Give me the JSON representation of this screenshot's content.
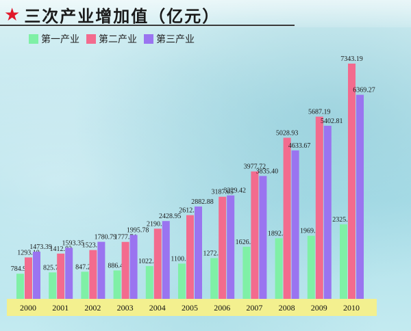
{
  "title": "三次产业增加值（亿元）",
  "colors": {
    "primary": "#7ff0a6",
    "secondary": "#f36b8e",
    "tertiary": "#9a74f0",
    "band": "#f3f08f",
    "star": "#e0182a"
  },
  "chart_data": {
    "type": "bar",
    "title": "三次产业增加值（亿元）",
    "categories": [
      "2000",
      "2001",
      "2002",
      "2003",
      "2004",
      "2005",
      "2006",
      "2007",
      "2008",
      "2009",
      "2010"
    ],
    "series": [
      {
        "name": "第一产业",
        "values": [
          784.92,
          825.73,
          847.25,
          886.47,
          1022.45,
          1100.65,
          1272.2,
          1626.48,
          1892.4,
          1969.69,
          2325.5
        ]
      },
      {
        "name": "第二产业",
        "values": [
          1293.18,
          1412.82,
          1523.5,
          1777.74,
          2190.54,
          2612.57,
          3187.05,
          3977.72,
          5028.93,
          5687.19,
          7343.19
        ]
      },
      {
        "name": "第三产业",
        "values": [
          1473.39,
          1593.35,
          1780.79,
          1995.78,
          2428.95,
          2882.88,
          3229.42,
          3835.4,
          4633.67,
          5402.81,
          6369.27
        ]
      }
    ],
    "labels": [
      [
        "784.92",
        "825.73",
        "847.25",
        "886.47",
        "1022.45",
        "1100.65",
        "1272.20",
        "1626.48",
        "1892.40",
        "1969.69",
        "2325.50"
      ],
      [
        "1293.18",
        "1412.82",
        "1523.50",
        "1777.74",
        "2190.54",
        "2612.57",
        "3187.05",
        "3977.72",
        "5028.93",
        "5687.19",
        "7343.19"
      ],
      [
        "1473.39",
        "1593.35",
        "1780.79",
        "1995.78",
        "2428.95",
        "2882.88",
        "3229.42",
        "3835.40",
        "4633.67",
        "5402.81",
        "6369.27"
      ]
    ],
    "ylim": [
      0,
      7343.19
    ],
    "legend": "top-left",
    "grid": false
  }
}
